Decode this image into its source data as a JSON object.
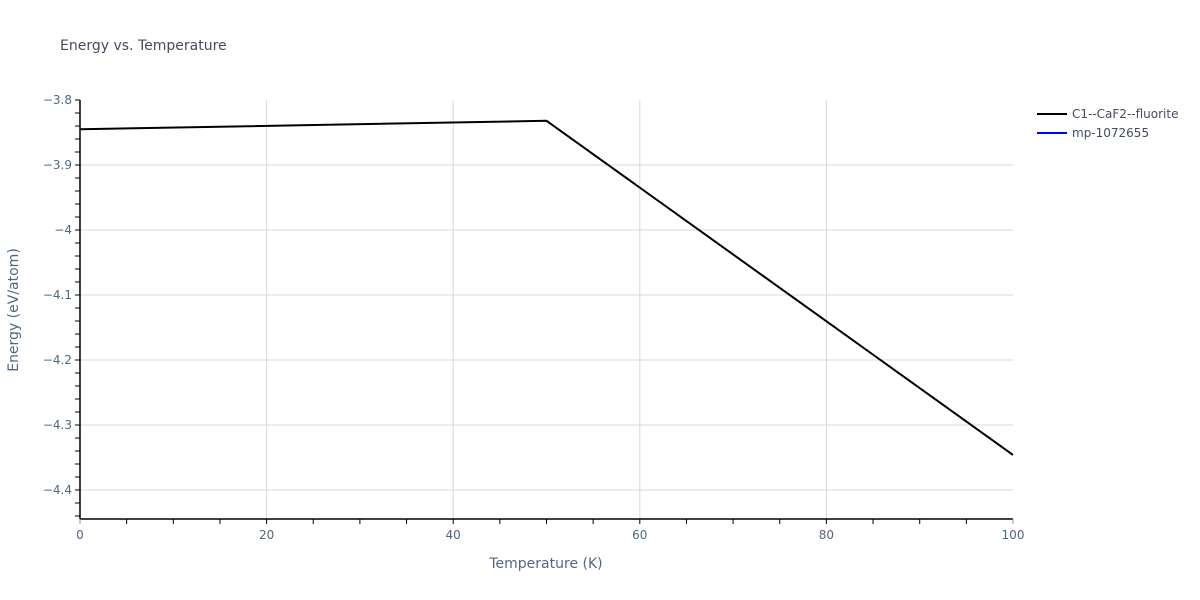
{
  "chart_data": {
    "type": "line",
    "title": "Energy vs. Temperature",
    "xlabel": "Temperature (K)",
    "ylabel": "Energy (eV/atom)",
    "xlim": [
      0,
      100
    ],
    "ylim": [
      -4.45,
      -3.8
    ],
    "x_ticks": [
      0,
      20,
      40,
      60,
      80,
      100
    ],
    "x_tick_labels": [
      "0",
      "20",
      "40",
      "60",
      "80",
      "100"
    ],
    "y_ticks": [
      -3.8,
      -3.9,
      -4.0,
      -4.1,
      -4.2,
      -4.3,
      -4.4
    ],
    "y_tick_labels": [
      "−3.8",
      "−3.9",
      "−4",
      "−4.1",
      "−4.2",
      "−4.3",
      "−4.4"
    ],
    "grid": true,
    "legend_position": "top-right-outside",
    "series": [
      {
        "name": "C1--CaF2--fluorite",
        "color": "#000000",
        "x": [
          0,
          50,
          100
        ],
        "y": [
          -3.845,
          -3.832,
          -4.346
        ]
      },
      {
        "name": "mp-1072655",
        "color": "#0000ff",
        "x": [],
        "y": []
      }
    ]
  }
}
